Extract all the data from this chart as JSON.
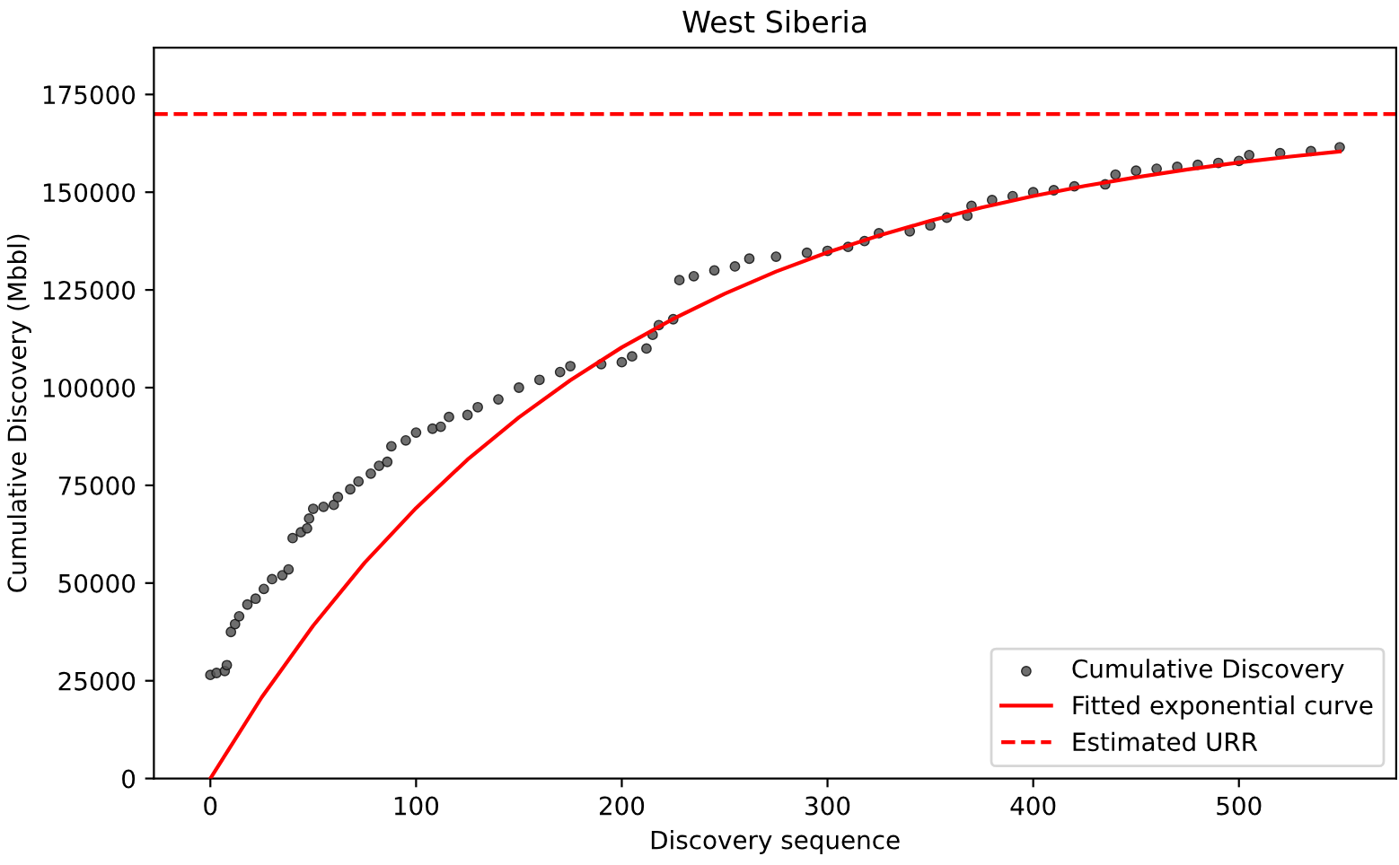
{
  "chart_data": {
    "type": "scatter",
    "title": "West Siberia",
    "xlabel": "Discovery sequence",
    "ylabel": "Cumulative Discovery (Mbbl)",
    "series": [
      {
        "name": "Cumulative Discovery",
        "marker": "circle",
        "color": "#555555",
        "x": [
          0,
          3,
          7,
          8,
          10,
          12,
          14,
          18,
          22,
          26,
          30,
          35,
          38,
          40,
          44,
          47,
          48,
          50,
          55,
          60,
          62,
          68,
          72,
          78,
          82,
          86,
          88,
          95,
          100,
          108,
          112,
          116,
          125,
          130,
          140,
          150,
          160,
          170,
          175,
          190,
          200,
          205,
          212,
          215,
          218,
          225,
          228,
          235,
          245,
          255,
          262,
          275,
          290,
          300,
          310,
          318,
          325,
          340,
          350,
          358,
          368,
          370,
          380,
          390,
          400,
          410,
          420,
          435,
          440,
          450,
          460,
          470,
          480,
          490,
          500,
          505,
          520,
          535,
          549
        ],
        "values": [
          26500,
          27000,
          27500,
          29000,
          37500,
          39500,
          41500,
          44500,
          46000,
          48500,
          51000,
          52000,
          53500,
          61500,
          63000,
          64000,
          66500,
          69000,
          69500,
          70000,
          72000,
          74000,
          76000,
          78000,
          80000,
          81000,
          85000,
          86500,
          88500,
          89500,
          90000,
          92500,
          93000,
          95000,
          97000,
          100000,
          102000,
          104000,
          105500,
          106000,
          106500,
          108000,
          110000,
          113500,
          116000,
          117500,
          127500,
          128500,
          130000,
          131000,
          133000,
          133500,
          134500,
          135000,
          136000,
          137500,
          139500,
          140000,
          141500,
          143500,
          144000,
          146500,
          148000,
          149000,
          150000,
          150500,
          151500,
          152000,
          154500,
          155500,
          156000,
          156500,
          157000,
          157500,
          158000,
          159500,
          160000,
          160500,
          161500
        ]
      },
      {
        "name": "Fitted exponential curve",
        "type": "line",
        "color": "#ff0000",
        "line_style": "solid",
        "x": [
          0,
          25,
          50,
          75,
          100,
          125,
          150,
          175,
          200,
          225,
          250,
          275,
          300,
          325,
          350,
          375,
          400,
          425,
          450,
          475,
          500,
          525,
          549
        ],
        "values": [
          0,
          20800,
          39100,
          55200,
          69200,
          81600,
          92400,
          101900,
          110300,
          117600,
          124000,
          129700,
          134600,
          138900,
          142700,
          146100,
          149000,
          151600,
          153800,
          155800,
          157600,
          159100,
          160400
        ]
      }
    ],
    "ref_lines": [
      {
        "axis": "y",
        "value": 170000,
        "label": "Estimated URR",
        "color": "#ff0000",
        "line_style": "dashed"
      }
    ],
    "xlim": [
      -27.45,
      576.45
    ],
    "ylim": [
      0,
      187000
    ],
    "xticks": [
      0,
      100,
      200,
      300,
      400,
      500
    ],
    "yticks": [
      0,
      25000,
      50000,
      75000,
      100000,
      125000,
      150000,
      175000
    ],
    "legend": "bottom right",
    "grid": false
  }
}
